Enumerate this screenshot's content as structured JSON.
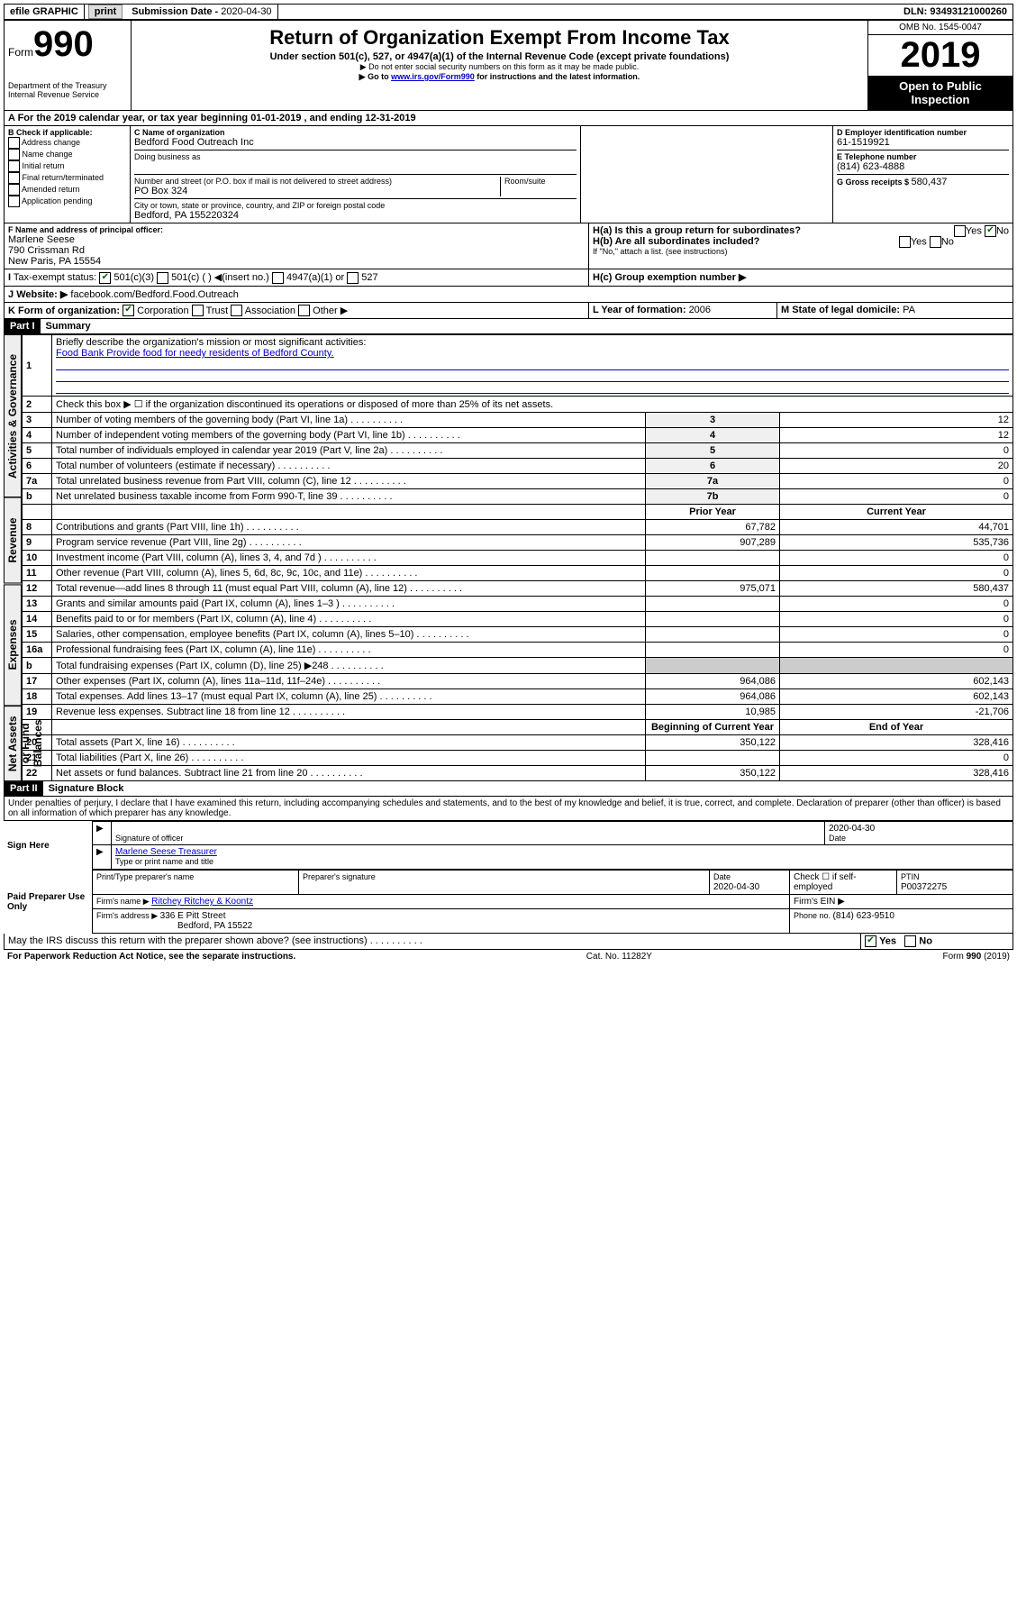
{
  "topbar": {
    "efile": "efile GRAPHIC",
    "print": "print",
    "submission_label": "Submission Date - ",
    "submission_date": "2020-04-30",
    "dln_label": "DLN: ",
    "dln": "93493121000260"
  },
  "header": {
    "form_word": "Form",
    "form_num": "990",
    "dept": "Department of the Treasury\nInternal Revenue Service",
    "title": "Return of Organization Exempt From Income Tax",
    "subtitle": "Under section 501(c), 527, or 4947(a)(1) of the Internal Revenue Code (except private foundations)",
    "note1": "▶ Do not enter social security numbers on this form as it may be made public.",
    "note2_pre": "▶ Go to ",
    "note2_link": "www.irs.gov/Form990",
    "note2_post": " for instructions and the latest information.",
    "omb": "OMB No. 1545-0047",
    "year": "2019",
    "open": "Open to Public Inspection"
  },
  "sectionA": {
    "line": "A For the 2019 calendar year, or tax year beginning 01-01-2019   , and ending 12-31-2019",
    "b_label": "B Check if applicable:",
    "b_opts": [
      "Address change",
      "Name change",
      "Initial return",
      "Final return/terminated",
      "Amended return",
      "Application pending"
    ],
    "c_label": "C Name of organization",
    "c_name": "Bedford Food Outreach Inc",
    "dba_label": "Doing business as",
    "addr_label": "Number and street (or P.O. box if mail is not delivered to street address)",
    "room_label": "Room/suite",
    "addr": "PO Box 324",
    "city_label": "City or town, state or province, country, and ZIP or foreign postal code",
    "city": "Bedford, PA  155220324",
    "d_label": "D Employer identification number",
    "ein": "61-1519921",
    "e_label": "E Telephone number",
    "phone": "(814) 623-4888",
    "g_label": "G Gross receipts $ ",
    "g_val": "580,437",
    "f_label": "F  Name and address of principal officer:",
    "f_name": "Marlene Seese",
    "f_addr1": "790 Crissman Rd",
    "f_addr2": "New Paris, PA  15554",
    "ha": "H(a)  Is this a group return for subordinates?",
    "hb": "H(b)  Are all subordinates included?",
    "hb_note": "If \"No,\" attach a list. (see instructions)",
    "hc": "H(c)  Group exemption number ▶",
    "yes": "Yes",
    "no": "No",
    "i_label": "Tax-exempt status:",
    "i_501c3": "501(c)(3)",
    "i_501c": "501(c) (  ) ◀(insert no.)",
    "i_4947": "4947(a)(1) or",
    "i_527": "527",
    "j_label": "Website: ▶",
    "j_val": "facebook.com/Bedford.Food.Outreach",
    "k_label": "K Form of organization:",
    "k_opts": [
      "Corporation",
      "Trust",
      "Association",
      "Other ▶"
    ],
    "l_label": "L Year of formation: ",
    "l_val": "2006",
    "m_label": "M State of legal domicile: ",
    "m_val": "PA"
  },
  "part1": {
    "header": "Part I",
    "title": "Summary",
    "side_gov": "Activities & Governance",
    "side_rev": "Revenue",
    "side_exp": "Expenses",
    "side_net": "Net Assets or Fund Balances",
    "q1": "Briefly describe the organization's mission or most significant activities:",
    "q1_ans": "Food Bank Provide food for needy residents of Bedford County.",
    "q2": "Check this box ▶ ☐  if the organization discontinued its operations or disposed of more than 25% of its net assets.",
    "rows_gov": [
      {
        "n": "3",
        "label": "Number of voting members of the governing body (Part VI, line 1a)",
        "box": "3",
        "val": "12"
      },
      {
        "n": "4",
        "label": "Number of independent voting members of the governing body (Part VI, line 1b)",
        "box": "4",
        "val": "12"
      },
      {
        "n": "5",
        "label": "Total number of individuals employed in calendar year 2019 (Part V, line 2a)",
        "box": "5",
        "val": "0"
      },
      {
        "n": "6",
        "label": "Total number of volunteers (estimate if necessary)",
        "box": "6",
        "val": "20"
      },
      {
        "n": "7a",
        "label": "Total unrelated business revenue from Part VIII, column (C), line 12",
        "box": "7a",
        "val": "0"
      },
      {
        "n": "b",
        "label": "Net unrelated business taxable income from Form 990-T, line 39",
        "box": "7b",
        "val": "0"
      }
    ],
    "col_prior": "Prior Year",
    "col_current": "Current Year",
    "rows_rev": [
      {
        "n": "8",
        "label": "Contributions and grants (Part VIII, line 1h)",
        "p": "67,782",
        "c": "44,701"
      },
      {
        "n": "9",
        "label": "Program service revenue (Part VIII, line 2g)",
        "p": "907,289",
        "c": "535,736"
      },
      {
        "n": "10",
        "label": "Investment income (Part VIII, column (A), lines 3, 4, and 7d )",
        "p": "",
        "c": "0"
      },
      {
        "n": "11",
        "label": "Other revenue (Part VIII, column (A), lines 5, 6d, 8c, 9c, 10c, and 11e)",
        "p": "",
        "c": "0"
      },
      {
        "n": "12",
        "label": "Total revenue—add lines 8 through 11 (must equal Part VIII, column (A), line 12)",
        "p": "975,071",
        "c": "580,437"
      }
    ],
    "rows_exp": [
      {
        "n": "13",
        "label": "Grants and similar amounts paid (Part IX, column (A), lines 1–3 )",
        "p": "",
        "c": "0"
      },
      {
        "n": "14",
        "label": "Benefits paid to or for members (Part IX, column (A), line 4)",
        "p": "",
        "c": "0"
      },
      {
        "n": "15",
        "label": "Salaries, other compensation, employee benefits (Part IX, column (A), lines 5–10)",
        "p": "",
        "c": "0"
      },
      {
        "n": "16a",
        "label": "Professional fundraising fees (Part IX, column (A), line 11e)",
        "p": "",
        "c": "0"
      },
      {
        "n": "b",
        "label": "Total fundraising expenses (Part IX, column (D), line 25) ▶248",
        "p": "—",
        "c": "—"
      },
      {
        "n": "17",
        "label": "Other expenses (Part IX, column (A), lines 11a–11d, 11f–24e)",
        "p": "964,086",
        "c": "602,143"
      },
      {
        "n": "18",
        "label": "Total expenses. Add lines 13–17 (must equal Part IX, column (A), line 25)",
        "p": "964,086",
        "c": "602,143"
      },
      {
        "n": "19",
        "label": "Revenue less expenses. Subtract line 18 from line 12",
        "p": "10,985",
        "c": "-21,706"
      }
    ],
    "col_begin": "Beginning of Current Year",
    "col_end": "End of Year",
    "rows_net": [
      {
        "n": "20",
        "label": "Total assets (Part X, line 16)",
        "p": "350,122",
        "c": "328,416"
      },
      {
        "n": "21",
        "label": "Total liabilities (Part X, line 26)",
        "p": "",
        "c": "0"
      },
      {
        "n": "22",
        "label": "Net assets or fund balances. Subtract line 21 from line 20",
        "p": "350,122",
        "c": "328,416"
      }
    ]
  },
  "part2": {
    "header": "Part II",
    "title": "Signature Block",
    "declaration": "Under penalties of perjury, I declare that I have examined this return, including accompanying schedules and statements, and to the best of my knowledge and belief, it is true, correct, and complete. Declaration of preparer (other than officer) is based on all information of which preparer has any knowledge.",
    "sign_here": "Sign Here",
    "sig_officer": "Signature of officer",
    "sig_date": "2020-04-30",
    "date_label": "Date",
    "officer_name": "Marlene Seese Treasurer",
    "type_name": "Type or print name and title",
    "paid": "Paid Preparer Use Only",
    "prep_name_label": "Print/Type preparer's name",
    "prep_sig_label": "Preparer's signature",
    "prep_date": "2020-04-30",
    "check_self": "Check ☐ if self-employed",
    "ptin_label": "PTIN",
    "ptin": "P00372275",
    "firm_name_label": "Firm's name    ▶ ",
    "firm_name": "Ritchey Ritchey & Koontz",
    "firm_ein_label": "Firm's EIN ▶",
    "firm_addr_label": "Firm's address ▶ ",
    "firm_addr1": "336 E Pitt Street",
    "firm_addr2": "Bedford, PA  15522",
    "firm_phone_label": "Phone no. ",
    "firm_phone": "(814) 623-9510",
    "discuss": "May the IRS discuss this return with the preparer shown above? (see instructions)"
  },
  "footer": {
    "pra": "For Paperwork Reduction Act Notice, see the separate instructions.",
    "cat": "Cat. No. 11282Y",
    "form": "Form 990 (2019)"
  }
}
